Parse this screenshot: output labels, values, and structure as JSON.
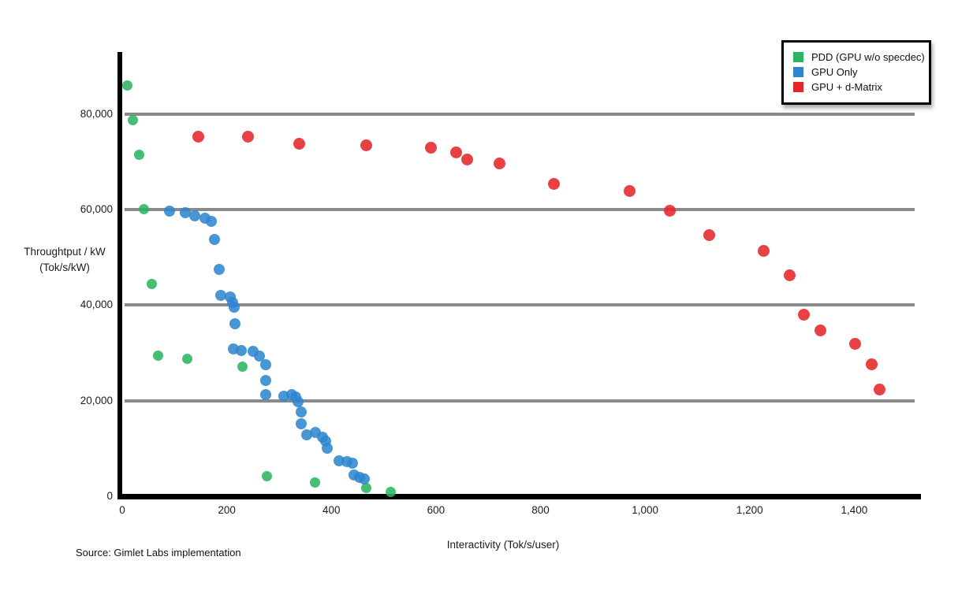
{
  "source_note": "Source: Gimlet Labs implementation",
  "chart_data": {
    "type": "scatter",
    "title": "",
    "xlabel": "Interactivity (Tok/s/user)",
    "ylabel_line1": "Throughtput / kW",
    "ylabel_line2": "(Tok/s/kW)",
    "xlim": [
      0,
      1520
    ],
    "ylim": [
      0,
      92800
    ],
    "grid": "horizontal-only",
    "gridline_color": "#8a8a8a",
    "gridlines_y": [
      20000,
      40000,
      60000,
      80000
    ],
    "x_ticks": [
      {
        "value": 0,
        "label": "0"
      },
      {
        "value": 200,
        "label": "200"
      },
      {
        "value": 400,
        "label": "400"
      },
      {
        "value": 600,
        "label": "600"
      },
      {
        "value": 800,
        "label": "800"
      },
      {
        "value": 1000,
        "label": "1,000"
      },
      {
        "value": 1200,
        "label": "1,200"
      },
      {
        "value": 1400,
        "label": "1,400"
      }
    ],
    "y_ticks": [
      {
        "value": 0,
        "label": "0"
      },
      {
        "value": 20000,
        "label": "20,000"
      },
      {
        "value": 40000,
        "label": "40,000"
      },
      {
        "value": 60000,
        "label": "60,000"
      },
      {
        "value": 80000,
        "label": "80,000"
      }
    ],
    "legend": {
      "position": "top-right",
      "entries": [
        {
          "label": "PDD (GPU w/o specdec)",
          "color": "#2bb561"
        },
        {
          "label": "GPU Only",
          "color": "#2e86cf"
        },
        {
          "label": "GPU + d-Matrix",
          "color": "#e52528"
        }
      ]
    },
    "series": [
      {
        "name": "PDD (GPU w/o specdec)",
        "color": "#2bb561",
        "marker_size": 13,
        "points": [
          [
            10,
            86000
          ],
          [
            20,
            78700
          ],
          [
            33,
            71500
          ],
          [
            42,
            60000
          ],
          [
            57,
            44500
          ],
          [
            68,
            29400
          ],
          [
            125,
            28700
          ],
          [
            230,
            27100
          ],
          [
            277,
            4200
          ],
          [
            368,
            2900
          ],
          [
            466,
            1700
          ],
          [
            514,
            900
          ]
        ]
      },
      {
        "name": "GPU Only",
        "color": "#2e86cf",
        "marker_size": 14,
        "points": [
          [
            90,
            59700
          ],
          [
            121,
            59300
          ],
          [
            139,
            58700
          ],
          [
            158,
            58200
          ],
          [
            170,
            57500
          ],
          [
            176,
            53800
          ],
          [
            185,
            47500
          ],
          [
            189,
            42100
          ],
          [
            207,
            41700
          ],
          [
            211,
            40600
          ],
          [
            214,
            39600
          ],
          [
            216,
            36100
          ],
          [
            213,
            30900
          ],
          [
            228,
            30500
          ],
          [
            250,
            30300
          ],
          [
            262,
            29400
          ],
          [
            274,
            27600
          ],
          [
            274,
            24300
          ],
          [
            274,
            21300
          ],
          [
            309,
            21000
          ],
          [
            324,
            21300
          ],
          [
            332,
            20800
          ],
          [
            336,
            19700
          ],
          [
            342,
            17700
          ],
          [
            342,
            15200
          ],
          [
            353,
            12900
          ],
          [
            369,
            13300
          ],
          [
            383,
            12400
          ],
          [
            389,
            11500
          ],
          [
            392,
            10100
          ],
          [
            415,
            7400
          ],
          [
            430,
            7200
          ],
          [
            440,
            6900
          ],
          [
            443,
            4500
          ],
          [
            454,
            3900
          ],
          [
            463,
            3600
          ]
        ]
      },
      {
        "name": "GPU + d-Matrix",
        "color": "#e52528",
        "marker_size": 15,
        "points": [
          [
            145,
            75300
          ],
          [
            240,
            75200
          ],
          [
            338,
            73800
          ],
          [
            466,
            73500
          ],
          [
            591,
            72900
          ],
          [
            639,
            72000
          ],
          [
            659,
            70500
          ],
          [
            721,
            69700
          ],
          [
            826,
            65400
          ],
          [
            970,
            63800
          ],
          [
            1048,
            59700
          ],
          [
            1123,
            54700
          ],
          [
            1226,
            51400
          ],
          [
            1276,
            46300
          ],
          [
            1304,
            38000
          ],
          [
            1336,
            34700
          ],
          [
            1401,
            31900
          ],
          [
            1433,
            27600
          ],
          [
            1449,
            22300
          ]
        ]
      }
    ]
  }
}
